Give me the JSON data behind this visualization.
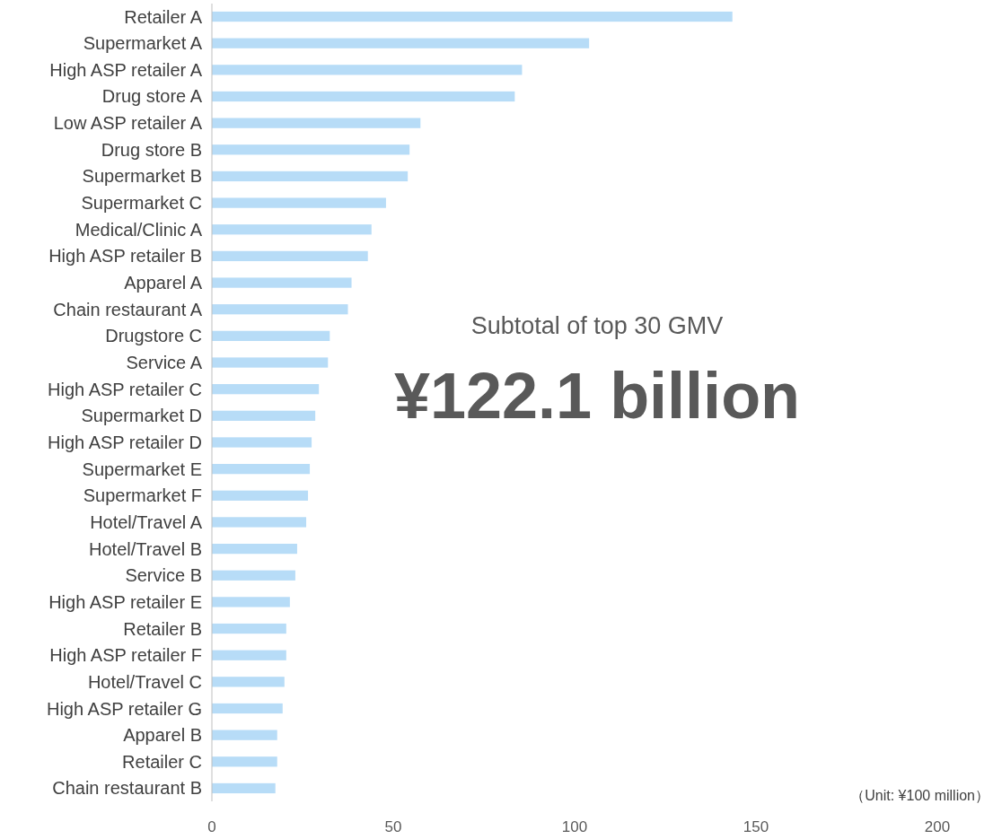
{
  "chart_data": {
    "type": "bar",
    "orientation": "horizontal",
    "categories": [
      "Retailer A",
      "Supermarket A",
      "High ASP retailer A",
      "Drug store A",
      "Low ASP retailer A",
      "Drug store B",
      "Supermarket B",
      "Supermarket C",
      "Medical/Clinic A",
      "High ASP retailer B",
      "Apparel A",
      "Chain restaurant A",
      "Drugstore C",
      "Service A",
      "High ASP retailer C",
      "Supermarket D",
      "High ASP retailer D",
      "Supermarket E",
      "Supermarket F",
      "Hotel/Travel A",
      "Hotel/Travel B",
      "Service B",
      "High ASP retailer E",
      "Retailer B",
      "High ASP retailer F",
      "Hotel/Travel C",
      "High ASP retailer G",
      "Apparel B",
      "Retailer C",
      "Chain restaurant B"
    ],
    "values": [
      143.5,
      104,
      85.5,
      83.5,
      57.5,
      54.5,
      54,
      48,
      44,
      43,
      38.5,
      37.5,
      32.5,
      32,
      29.5,
      28.5,
      27.5,
      27,
      26.5,
      26,
      23.5,
      23,
      21.5,
      20.5,
      20.5,
      20,
      19.5,
      18,
      18,
      17.5
    ],
    "color": "#b7dcf7",
    "xlim": [
      0,
      200
    ],
    "xticks": [
      0,
      50,
      100,
      150,
      200
    ],
    "grid": false,
    "annotations": [
      "Subtotal of top 30 GMV",
      "¥122.1 billion",
      "（Unit: ¥100 million）"
    ]
  }
}
